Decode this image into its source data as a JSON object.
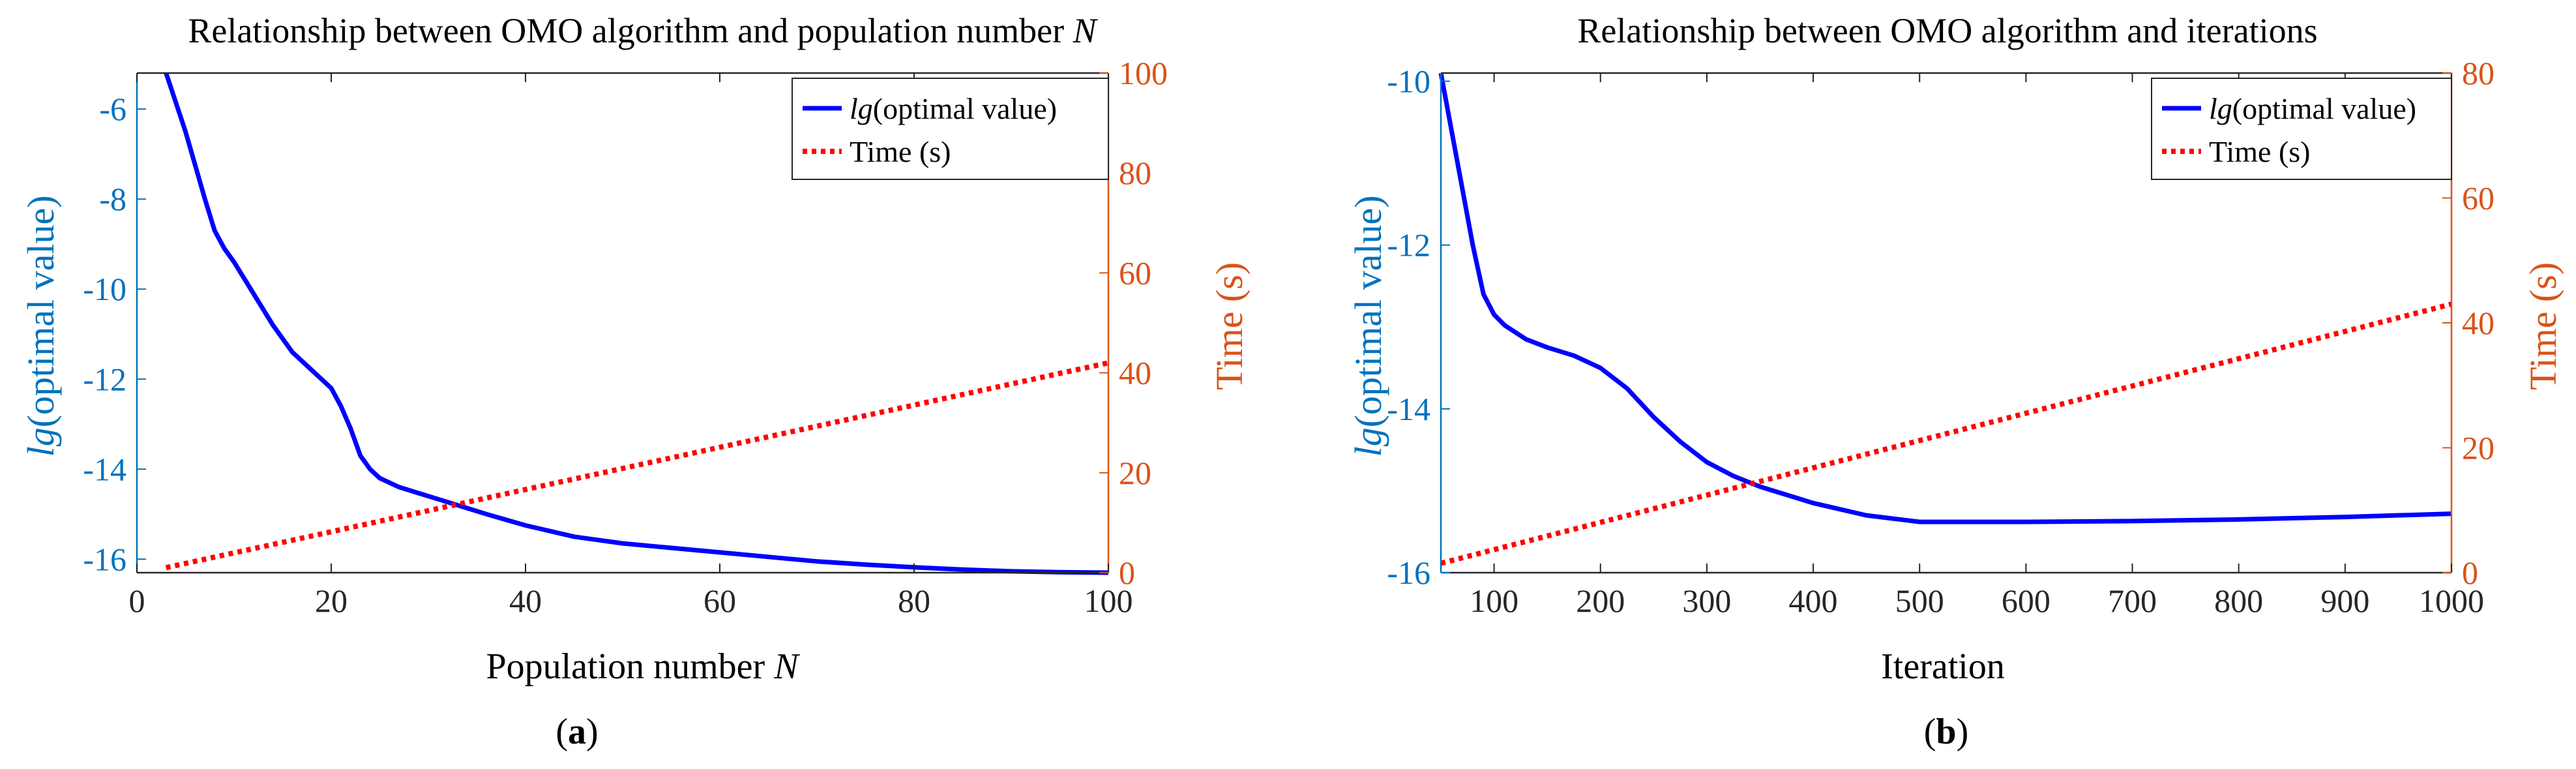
{
  "colors": {
    "left_axis": "#0072bd",
    "right_axis": "#d95319",
    "line": "#0000ff",
    "dotted": "#ff0000",
    "frame": "#262626"
  },
  "chart_data": [
    {
      "type": "line",
      "panel": "a",
      "title": "Relationship between OMO algorithm and population number N",
      "title_parts": {
        "main": "Relationship between OMO algorithm and population number ",
        "italic": "N"
      },
      "xlabel": "Population number N",
      "xlabel_parts": {
        "main": "Population number ",
        "italic": "N"
      },
      "ylabel_left": "lg(optimal value)",
      "ylabel_left_parts": {
        "italic": "lg",
        "main": "(optimal value)"
      },
      "ylabel_right": "Time (s)",
      "caption": "(a)",
      "caption_parts": {
        "open": "(",
        "letter": "a",
        "close": ")"
      },
      "xlim": [
        0,
        100
      ],
      "ylim_left": [
        -16.3,
        -5.2
      ],
      "ylim_right": [
        0,
        100
      ],
      "xticks": [
        0,
        20,
        40,
        60,
        80,
        100
      ],
      "xtick_labels": [
        "0",
        "20",
        "40",
        "60",
        "80",
        "100"
      ],
      "yticks_left": [
        -6,
        -8,
        -10,
        -12,
        -14,
        -16
      ],
      "ytick_labels_left": [
        "-6",
        "-8",
        "-10",
        "-12",
        "-14",
        "-16"
      ],
      "yticks_right": [
        0,
        20,
        40,
        60,
        80,
        100
      ],
      "ytick_labels_right": [
        "0",
        "20",
        "40",
        "60",
        "80",
        "100"
      ],
      "legend": {
        "position": "top-right",
        "entries": [
          {
            "label": "lg(optimal value)",
            "italic": "lg",
            "main": "(optimal value)"
          },
          {
            "label": "Time (s)",
            "italic": "",
            "main": "Time (s)"
          }
        ]
      },
      "series": [
        {
          "name": "lg(optimal value)",
          "axis": "left",
          "style": "solid",
          "x": [
            3,
            5,
            7,
            8,
            9,
            10,
            12,
            14,
            16,
            18,
            20,
            21,
            22,
            23,
            24,
            25,
            27,
            30,
            33,
            36,
            40,
            45,
            50,
            55,
            60,
            65,
            70,
            75,
            80,
            85,
            90,
            95,
            100
          ],
          "y": [
            -5.2,
            -6.5,
            -8.0,
            -8.7,
            -9.1,
            -9.4,
            -10.1,
            -10.8,
            -11.4,
            -11.8,
            -12.2,
            -12.6,
            -13.1,
            -13.7,
            -14.0,
            -14.2,
            -14.4,
            -14.6,
            -14.8,
            -15.0,
            -15.25,
            -15.5,
            -15.65,
            -15.75,
            -15.85,
            -15.95,
            -16.05,
            -16.12,
            -16.18,
            -16.23,
            -16.27,
            -16.29,
            -16.3
          ]
        },
        {
          "name": "Time (s)",
          "axis": "right",
          "style": "dotted",
          "x": [
            3,
            100
          ],
          "y": [
            1.0,
            42.0
          ]
        }
      ]
    },
    {
      "type": "line",
      "panel": "b",
      "title": "Relationship between OMO algorithm and iterations",
      "title_parts": {
        "main": "Relationship between OMO algorithm and iterations",
        "italic": ""
      },
      "xlabel": "Iteration",
      "xlabel_parts": {
        "main": "Iteration",
        "italic": ""
      },
      "ylabel_left": "lg(optimal value)",
      "ylabel_left_parts": {
        "italic": "lg",
        "main": "(optimal value)"
      },
      "ylabel_right": "Time (s)",
      "caption": "(b)",
      "caption_parts": {
        "open": "(",
        "letter": "b",
        "close": ")"
      },
      "xlim": [
        50,
        1000
      ],
      "ylim_left": [
        -16,
        -9.9
      ],
      "ylim_right": [
        0,
        80
      ],
      "xticks": [
        100,
        200,
        300,
        400,
        500,
        600,
        700,
        800,
        900,
        1000
      ],
      "xtick_labels": [
        "100",
        "200",
        "300",
        "400",
        "500",
        "600",
        "700",
        "800",
        "900",
        "1000"
      ],
      "yticks_left": [
        -10,
        -12,
        -14,
        -16
      ],
      "ytick_labels_left": [
        "-10",
        "-12",
        "-14",
        "-16"
      ],
      "yticks_right": [
        0,
        20,
        40,
        60,
        80
      ],
      "ytick_labels_right": [
        "0",
        "20",
        "40",
        "60",
        "80"
      ],
      "legend": {
        "position": "top-right",
        "entries": [
          {
            "label": "lg(optimal value)",
            "italic": "lg",
            "main": "(optimal value)"
          },
          {
            "label": "Time (s)",
            "italic": "",
            "main": "Time (s)"
          }
        ]
      },
      "series": [
        {
          "name": "lg(optimal value)",
          "axis": "left",
          "style": "solid",
          "x": [
            50,
            60,
            70,
            80,
            90,
            100,
            110,
            130,
            150,
            175,
            200,
            225,
            250,
            275,
            300,
            325,
            350,
            400,
            450,
            500,
            550,
            600,
            700,
            800,
            900,
            1000
          ],
          "y": [
            -9.9,
            -10.6,
            -11.3,
            -12.0,
            -12.6,
            -12.85,
            -12.98,
            -13.15,
            -13.25,
            -13.35,
            -13.5,
            -13.75,
            -14.1,
            -14.4,
            -14.65,
            -14.82,
            -14.95,
            -15.15,
            -15.3,
            -15.38,
            -15.38,
            -15.38,
            -15.37,
            -15.35,
            -15.32,
            -15.28
          ]
        },
        {
          "name": "Time (s)",
          "axis": "right",
          "style": "dotted",
          "x": [
            50,
            1000
          ],
          "y": [
            1.5,
            43.0
          ]
        }
      ]
    }
  ]
}
